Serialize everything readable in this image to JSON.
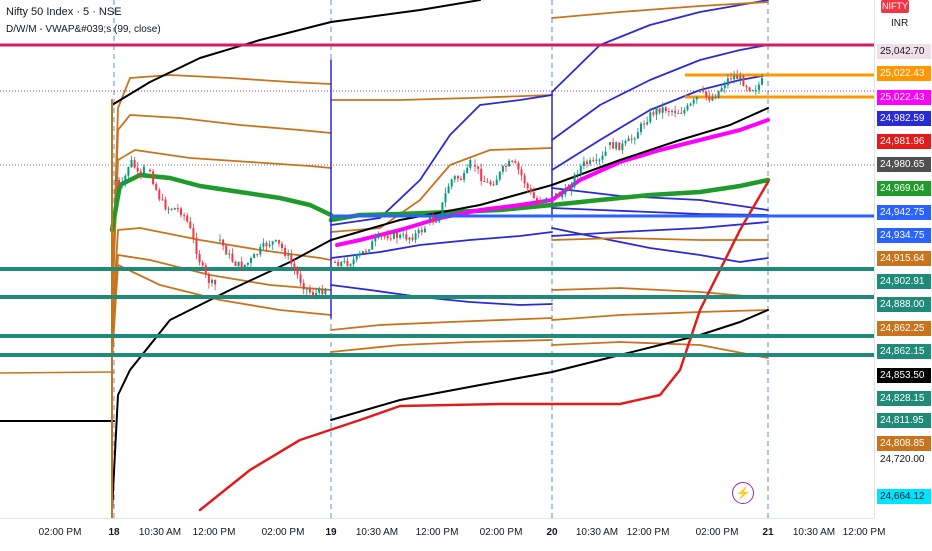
{
  "header": {
    "symbol": "Nifty 50 Index · 5 · NSE",
    "indicator": "D/W/M - VWAP&#039;s (99, close)"
  },
  "price_axis": {
    "symbol_tag": "NIFTY",
    "currency": "INR",
    "labels": [
      {
        "text": "25,042.70",
        "bg": "#f0dfe6",
        "fg": "#131722"
      },
      {
        "text": "25,022.43",
        "bg": "#ff9800",
        "fg": "#ffffff"
      },
      {
        "text": "25,022.43",
        "bg": "#ff00ff",
        "fg": "#ffffff"
      },
      {
        "text": "24,982.59",
        "bg": "#2a2ad8",
        "fg": "#ffffff"
      },
      {
        "text": "24,981.96",
        "bg": "#e31b1b",
        "fg": "#ffffff"
      },
      {
        "text": "24,980.65",
        "bg": "#505050",
        "fg": "#ffffff"
      },
      {
        "text": "24,969.04",
        "bg": "#1e9b2a",
        "fg": "#ffffff"
      },
      {
        "text": "24,942.75",
        "bg": "#2962ff",
        "fg": "#ffffff"
      },
      {
        "text": "24,934.75",
        "bg": "#2962ff",
        "fg": "#ffffff"
      },
      {
        "text": "24,915.64",
        "bg": "#c8741c",
        "fg": "#ffffff"
      },
      {
        "text": "24,902.91",
        "bg": "#1f8a78",
        "fg": "#ffffff"
      },
      {
        "text": "24,888.00",
        "bg": "#1f8a78",
        "fg": "#ffffff"
      },
      {
        "text": "24,862.25",
        "bg": "#c8741c",
        "fg": "#ffffff"
      },
      {
        "text": "24,862.15",
        "bg": "#1f8a78",
        "fg": "#ffffff"
      },
      {
        "text": "24,853.50",
        "bg": "#000000",
        "fg": "#ffffff"
      },
      {
        "text": "24,828.15",
        "bg": "#1f8a78",
        "fg": "#ffffff"
      },
      {
        "text": "24,811.95",
        "bg": "#1f8a78",
        "fg": "#ffffff"
      },
      {
        "text": "24,808.85",
        "bg": "#c8741c",
        "fg": "#ffffff"
      }
    ],
    "partial_label": "24,720.00",
    "bottom_label": {
      "text": "24,664.12",
      "bg": "#00e5ff",
      "fg": "#131722"
    }
  },
  "time_axis": {
    "labels": [
      {
        "text": "02:00 PM",
        "day": false
      },
      {
        "text": "18",
        "day": true
      },
      {
        "text": "10:30 AM",
        "day": false
      },
      {
        "text": "12:00 PM",
        "day": false
      },
      {
        "text": "02:00 PM",
        "day": false
      },
      {
        "text": "19",
        "day": true
      },
      {
        "text": "10:30 AM",
        "day": false
      },
      {
        "text": "12:00 PM",
        "day": false
      },
      {
        "text": "02:00 PM",
        "day": false
      },
      {
        "text": "20",
        "day": true
      },
      {
        "text": "10:30 AM",
        "day": false
      },
      {
        "text": "12:00 PM",
        "day": false
      },
      {
        "text": "02:00 PM",
        "day": false
      },
      {
        "text": "21",
        "day": true
      },
      {
        "text": "10:30 AM",
        "day": false
      },
      {
        "text": "12:00 PM",
        "day": false
      }
    ]
  },
  "colors": {
    "hline_crimson": "#d81b60",
    "hline_orange": "#ff9800",
    "hline_teal": "#1f8a78",
    "hline_blue": "#2962ff",
    "vwap_green": "#1e9b2a",
    "vwap_magenta": "#ff00ff",
    "band_blue": "#2a2ad8",
    "band_brown": "#c8741c",
    "monthly_black": "#000000",
    "monthly_red": "#e31b1b",
    "candle_up": "#089981",
    "candle_down": "#f23645"
  },
  "icons": {
    "flash": "lightning-icon"
  }
}
